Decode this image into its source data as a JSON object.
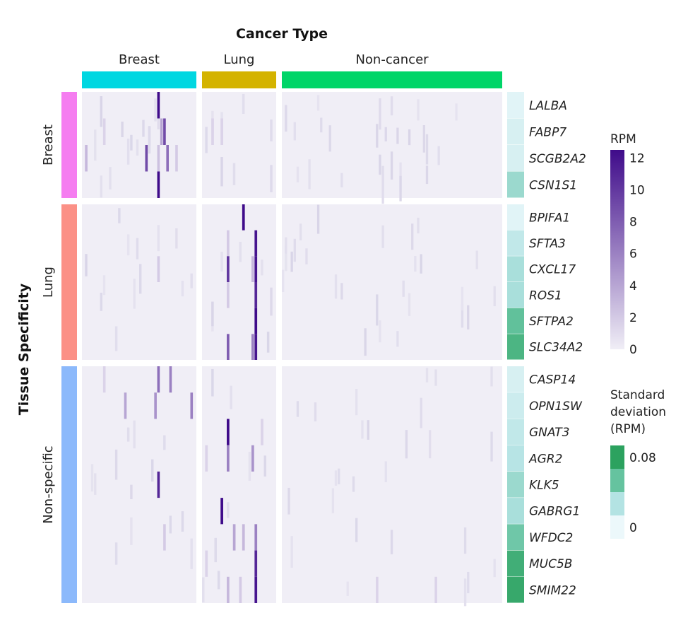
{
  "chart_data": {
    "type": "heatmap",
    "column_title": "Cancer Type",
    "row_title": "Tissue Specificity",
    "column_groups": [
      {
        "label": "Breast",
        "color": "#00d7e1",
        "samples": 38
      },
      {
        "label": "Lung",
        "color": "#d4b300",
        "samples": 24
      },
      {
        "label": "Non-cancer",
        "color": "#00d568",
        "samples": 75
      }
    ],
    "row_groups": [
      {
        "label": "Breast",
        "color": "#f57df0",
        "genes": [
          {
            "name": "LALBA",
            "sd": 0.005
          },
          {
            "name": "FABP7",
            "sd": 0.01
          },
          {
            "name": "SCGB2A2",
            "sd": 0.01
          },
          {
            "name": "CSN1S1",
            "sd": 0.035
          }
        ]
      },
      {
        "label": "Lung",
        "color": "#fb9086",
        "genes": [
          {
            "name": "BPIFA1",
            "sd": 0.005
          },
          {
            "name": "SFTA3",
            "sd": 0.02
          },
          {
            "name": "CXCL17",
            "sd": 0.03
          },
          {
            "name": "ROS1",
            "sd": 0.03
          },
          {
            "name": "SFTPA2",
            "sd": 0.055
          },
          {
            "name": "SLC34A2",
            "sd": 0.065
          }
        ]
      },
      {
        "label": "Non-specific",
        "color": "#8cb9fb",
        "genes": [
          {
            "name": "CASP14",
            "sd": 0.01
          },
          {
            "name": "OPN1SW",
            "sd": 0.015
          },
          {
            "name": "GNAT3",
            "sd": 0.02
          },
          {
            "name": "AGR2",
            "sd": 0.025
          },
          {
            "name": "KLK5",
            "sd": 0.035
          },
          {
            "name": "GABRG1",
            "sd": 0.03
          },
          {
            "name": "WFDC2",
            "sd": 0.05
          },
          {
            "name": "MUC5B",
            "sd": 0.07
          },
          {
            "name": "SMIM22",
            "sd": 0.075
          }
        ]
      }
    ],
    "highlights": [
      {
        "gene": "LALBA",
        "group": "Breast",
        "sample": 25,
        "value": 12.5
      },
      {
        "gene": "FABP7",
        "group": "Breast",
        "sample": 26,
        "value": 4
      },
      {
        "gene": "FABP7",
        "group": "Breast",
        "sample": 27,
        "value": 9
      },
      {
        "gene": "FABP7",
        "group": "Breast",
        "sample": 7,
        "value": 1.5
      },
      {
        "gene": "FABP7",
        "group": "Lung",
        "sample": 3,
        "value": 1.5
      },
      {
        "gene": "FABP7",
        "group": "Lung",
        "sample": 6,
        "value": 1.5
      },
      {
        "gene": "SCGB2A2",
        "group": "Breast",
        "sample": 21,
        "value": 9
      },
      {
        "gene": "SCGB2A2",
        "group": "Breast",
        "sample": 28,
        "value": 7
      },
      {
        "gene": "SCGB2A2",
        "group": "Breast",
        "sample": 1,
        "value": 3
      },
      {
        "gene": "SCGB2A2",
        "group": "Breast",
        "sample": 25,
        "value": 2.5
      },
      {
        "gene": "SCGB2A2",
        "group": "Breast",
        "sample": 31,
        "value": 2
      },
      {
        "gene": "CSN1S1",
        "group": "Breast",
        "sample": 25,
        "value": 12.5
      },
      {
        "gene": "BPIFA1",
        "group": "Lung",
        "sample": 13,
        "value": 12.5
      },
      {
        "gene": "SFTA3",
        "group": "Lung",
        "sample": 17,
        "value": 12
      },
      {
        "gene": "SFTA3",
        "group": "Lung",
        "sample": 8,
        "value": 2
      },
      {
        "gene": "CXCL17",
        "group": "Lung",
        "sample": 8,
        "value": 10
      },
      {
        "gene": "CXCL17",
        "group": "Lung",
        "sample": 17,
        "value": 12
      },
      {
        "gene": "CXCL17",
        "group": "Lung",
        "sample": 16,
        "value": 3
      },
      {
        "gene": "CXCL17",
        "group": "Breast",
        "sample": 25,
        "value": 2
      },
      {
        "gene": "ROS1",
        "group": "Lung",
        "sample": 17,
        "value": 11
      },
      {
        "gene": "ROS1",
        "group": "Lung",
        "sample": 8,
        "value": 2
      },
      {
        "gene": "SFTPA2",
        "group": "Lung",
        "sample": 17,
        "value": 12.5
      },
      {
        "gene": "SLC34A2",
        "group": "Lung",
        "sample": 17,
        "value": 12
      },
      {
        "gene": "SLC34A2",
        "group": "Lung",
        "sample": 8,
        "value": 8
      },
      {
        "gene": "SLC34A2",
        "group": "Lung",
        "sample": 16,
        "value": 6
      },
      {
        "gene": "CASP14",
        "group": "Breast",
        "sample": 25,
        "value": 7
      },
      {
        "gene": "CASP14",
        "group": "Breast",
        "sample": 29,
        "value": 6
      },
      {
        "gene": "CASP14",
        "group": "Breast",
        "sample": 7,
        "value": 1.5
      },
      {
        "gene": "OPN1SW",
        "group": "Breast",
        "sample": 14,
        "value": 4
      },
      {
        "gene": "OPN1SW",
        "group": "Breast",
        "sample": 24,
        "value": 5
      },
      {
        "gene": "OPN1SW",
        "group": "Breast",
        "sample": 36,
        "value": 6
      },
      {
        "gene": "GNAT3",
        "group": "Lung",
        "sample": 8,
        "value": 12.5
      },
      {
        "gene": "GNAT3",
        "group": "Lung",
        "sample": 19,
        "value": 1.5
      },
      {
        "gene": "AGR2",
        "group": "Lung",
        "sample": 8,
        "value": 6
      },
      {
        "gene": "AGR2",
        "group": "Lung",
        "sample": 16,
        "value": 5
      },
      {
        "gene": "AGR2",
        "group": "Lung",
        "sample": 1,
        "value": 1.5
      },
      {
        "gene": "KLK5",
        "group": "Breast",
        "sample": 25,
        "value": 11
      },
      {
        "gene": "GABRG1",
        "group": "Lung",
        "sample": 6,
        "value": 12.5
      },
      {
        "gene": "WFDC2",
        "group": "Lung",
        "sample": 10,
        "value": 4
      },
      {
        "gene": "WFDC2",
        "group": "Lung",
        "sample": 13,
        "value": 3
      },
      {
        "gene": "WFDC2",
        "group": "Lung",
        "sample": 17,
        "value": 6
      },
      {
        "gene": "WFDC2",
        "group": "Breast",
        "sample": 27,
        "value": 2
      },
      {
        "gene": "MUC5B",
        "group": "Lung",
        "sample": 17,
        "value": 11
      },
      {
        "gene": "MUC5B",
        "group": "Lung",
        "sample": 1,
        "value": 1.5
      },
      {
        "gene": "SMIM22",
        "group": "Lung",
        "sample": 17,
        "value": 12
      },
      {
        "gene": "SMIM22",
        "group": "Lung",
        "sample": 8,
        "value": 3
      },
      {
        "gene": "SMIM22",
        "group": "Lung",
        "sample": 12,
        "value": 2
      },
      {
        "gene": "SMIM22",
        "group": "Non-cancer",
        "sample": 32,
        "value": 1.5
      },
      {
        "gene": "SMIM22",
        "group": "Non-cancer",
        "sample": 52,
        "value": 1.5
      }
    ],
    "rpm_legend": {
      "title": "RPM",
      "ticks": [
        0,
        2,
        4,
        6,
        8,
        10,
        12
      ],
      "min": 0,
      "max": 12.5,
      "color_low": "#f0eef6",
      "color_high": "#3f0b8a"
    },
    "sd_legend": {
      "title_lines": [
        "Standard",
        "deviation",
        "(RPM)"
      ],
      "ticks": [
        "0.08",
        "0"
      ],
      "min": 0,
      "max": 0.08,
      "colors": [
        "#ecf8fb",
        "#b3e3e3",
        "#65c39f",
        "#2ca25f"
      ]
    }
  }
}
